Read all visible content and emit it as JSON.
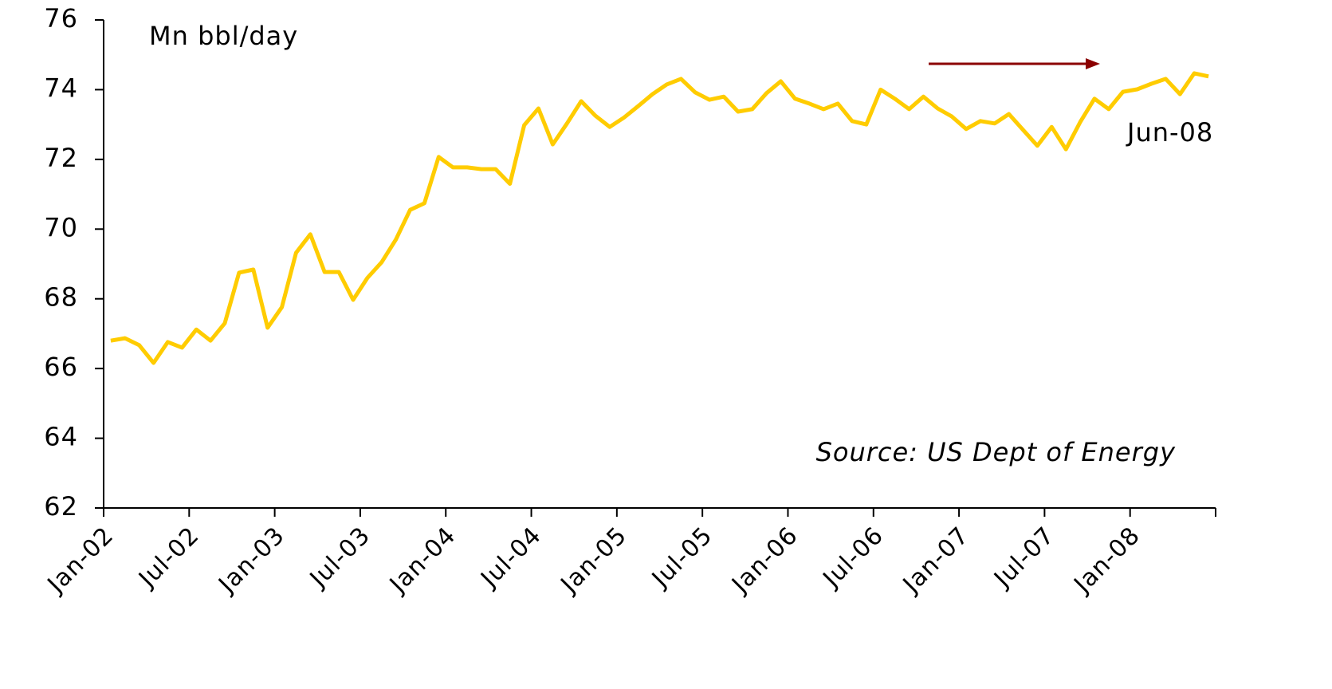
{
  "chart_data": {
    "type": "line",
    "y_label": "Mn bbl/day",
    "annotations": [
      "Jun-08",
      "Source: US Dept of Energy"
    ],
    "categories": [
      "Jan-02",
      null,
      null,
      null,
      null,
      null,
      "Jul-02",
      null,
      null,
      null,
      null,
      null,
      "Jan-03",
      null,
      null,
      null,
      null,
      null,
      "Jul-03",
      null,
      null,
      null,
      null,
      null,
      "Jan-04",
      null,
      null,
      null,
      null,
      null,
      "Jul-04",
      null,
      null,
      null,
      null,
      null,
      "Jan-05",
      null,
      null,
      null,
      null,
      null,
      "Jul-05",
      null,
      null,
      null,
      null,
      null,
      "Jan-06",
      null,
      null,
      null,
      null,
      null,
      "Jul-06",
      null,
      null,
      null,
      null,
      null,
      "Jan-07",
      null,
      null,
      null,
      null,
      null,
      "Jul-07",
      null,
      null,
      null,
      null,
      null,
      "Jan-08",
      null,
      null,
      null,
      null,
      null
    ],
    "values": [
      66.8,
      66.87,
      66.67,
      66.16,
      66.76,
      66.6,
      67.12,
      66.8,
      67.3,
      68.75,
      68.84,
      67.17,
      67.76,
      69.32,
      69.85,
      68.77,
      68.77,
      67.97,
      68.6,
      69.05,
      69.7,
      70.55,
      70.74,
      72.07,
      71.77,
      71.77,
      71.72,
      71.72,
      71.3,
      72.98,
      73.46,
      72.43,
      73.03,
      73.67,
      73.25,
      72.93,
      73.2,
      73.53,
      73.87,
      74.15,
      74.31,
      73.92,
      73.71,
      73.8,
      73.37,
      73.44,
      73.9,
      74.24,
      73.74,
      73.6,
      73.44,
      73.6,
      73.1,
      73.0,
      74.0,
      73.74,
      73.44,
      73.8,
      73.46,
      73.23,
      72.87,
      73.1,
      73.03,
      73.3,
      72.84,
      72.39,
      72.93,
      72.29,
      73.07,
      73.74,
      73.44,
      73.94,
      74.01,
      74.17,
      74.31,
      73.87,
      74.47,
      74.38
    ],
    "color": "#ffcc00",
    "ylim": [
      62,
      76
    ],
    "yticks": [
      62,
      64,
      66,
      68,
      70,
      72,
      74,
      76
    ],
    "grid": false
  }
}
